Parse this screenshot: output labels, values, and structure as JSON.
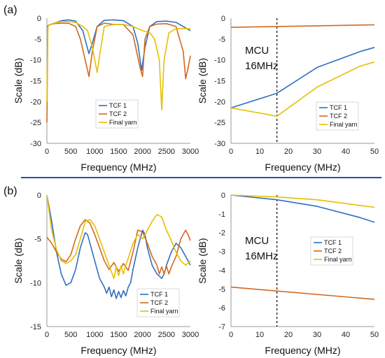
{
  "panel_labels": [
    "(a)",
    "(b)"
  ],
  "colors": {
    "tcf1": "#2f6fc4",
    "tcf2": "#d2691e",
    "final": "#e6c000",
    "divider": "#1f4fb5",
    "annotation_line": "#000000"
  },
  "chart_data": [
    {
      "id": "a_left",
      "type": "line",
      "xlabel": "Frequency (MHz)",
      "ylabel": "Scale (dB)",
      "xlim": [
        0,
        3000
      ],
      "ylim": [
        -30,
        0
      ],
      "xticks": [
        0,
        500,
        1000,
        1500,
        2000,
        2500,
        3000
      ],
      "yticks": [
        0,
        -5,
        -10,
        -15,
        -20,
        -25,
        -30
      ],
      "grid": false,
      "legend": "center",
      "series": [
        {
          "name": "TCF 1",
          "color": "#2f6fc4",
          "x": [
            0,
            50,
            150,
            300,
            450,
            600,
            750,
            820,
            880,
            950,
            1050,
            1200,
            1400,
            1600,
            1800,
            1900,
            1980,
            2050,
            2150,
            2300,
            2500,
            2700,
            2850,
            3000
          ],
          "y": [
            -2,
            -1.6,
            -1.2,
            -0.6,
            -0.4,
            -0.7,
            -3,
            -6,
            -8.5,
            -6,
            -2,
            -0.5,
            -0.4,
            -0.6,
            -2,
            -6,
            -12.5,
            -7,
            -2,
            -0.8,
            -0.7,
            -1,
            -2,
            -3
          ]
        },
        {
          "name": "TCF 2",
          "color": "#d2691e",
          "x": [
            0,
            20,
            60,
            150,
            300,
            450,
            600,
            700,
            800,
            880,
            950,
            1050,
            1200,
            1400,
            1600,
            1800,
            1950,
            2000,
            2050,
            2150,
            2300,
            2500,
            2700,
            2850,
            2900,
            2950,
            3000
          ],
          "y": [
            -25,
            -2,
            -1.5,
            -1.3,
            -1.2,
            -1.2,
            -2,
            -5,
            -10,
            -14,
            -8,
            -2,
            -1.2,
            -1.5,
            -1.5,
            -4,
            -12,
            -14,
            -5,
            -2,
            -1.4,
            -1.3,
            -2,
            -8,
            -14.5,
            -12,
            -9
          ]
        },
        {
          "name": "Final yarn",
          "color": "#e6c000",
          "x": [
            0,
            20,
            60,
            150,
            300,
            450,
            600,
            750,
            850,
            950,
            1000,
            1050,
            1100,
            1200,
            1400,
            1600,
            1800,
            2000,
            2150,
            2250,
            2350,
            2400,
            2450,
            2550,
            2700,
            2850,
            3000
          ],
          "y": [
            -20,
            -2,
            -1.5,
            -1.2,
            -0.8,
            -0.8,
            -1,
            -2,
            -3,
            -7,
            -10,
            -13,
            -9,
            -2,
            -1.5,
            -1.5,
            -2,
            -3,
            -3.5,
            -5,
            -10,
            -22,
            -10,
            -3.5,
            -2.5,
            -2.5,
            -2.5
          ]
        }
      ]
    },
    {
      "id": "a_right",
      "type": "line",
      "xlabel": "Frequency (MHz)",
      "ylabel": "Scale (dB)",
      "xlim": [
        0,
        50
      ],
      "ylim": [
        -30,
        0
      ],
      "xticks": [
        0,
        10,
        20,
        30,
        40,
        50
      ],
      "yticks": [
        0,
        -5,
        -10,
        -15,
        -20,
        -25,
        -30
      ],
      "grid": false,
      "legend": "lower-right",
      "annotation": {
        "text": [
          "MCU",
          "16MHz"
        ],
        "x": 16,
        "line": "dashed-vertical"
      },
      "series": [
        {
          "name": "TCF 1",
          "color": "#2f6fc4",
          "x": [
            0,
            16,
            30,
            45,
            50
          ],
          "y": [
            -21.5,
            -18,
            -11.8,
            -8,
            -7
          ]
        },
        {
          "name": "TCF 2",
          "color": "#d2691e",
          "x": [
            0,
            50
          ],
          "y": [
            -2.2,
            -1.6
          ]
        },
        {
          "name": "Final yarn",
          "color": "#e6c000",
          "x": [
            0,
            16,
            30,
            45,
            50
          ],
          "y": [
            -21.5,
            -23.5,
            -16.5,
            -11.5,
            -10.5
          ]
        }
      ]
    },
    {
      "id": "b_left",
      "type": "line",
      "xlabel": "Frequency (MHz)",
      "ylabel": "Scale (dB)",
      "xlim": [
        0,
        3000
      ],
      "ylim": [
        -15,
        0
      ],
      "xticks": [
        0,
        500,
        1000,
        1500,
        2000,
        2500,
        3000
      ],
      "yticks": [
        0,
        -5,
        -10,
        -15
      ],
      "grid": false,
      "legend": "lower-right",
      "series": [
        {
          "name": "TCF 1",
          "color": "#2f6fc4",
          "x": [
            0,
            100,
            200,
            300,
            400,
            500,
            600,
            700,
            800,
            850,
            900,
            1000,
            1100,
            1200,
            1250,
            1300,
            1350,
            1400,
            1450,
            1500,
            1550,
            1600,
            1650,
            1700,
            1750,
            1800,
            1900,
            2000,
            2050,
            2100,
            2200,
            2300,
            2400,
            2450,
            2500,
            2600,
            2700,
            2800,
            2900,
            3000
          ],
          "y": [
            0,
            -3,
            -6.5,
            -9,
            -10.3,
            -10,
            -8.5,
            -6,
            -4.3,
            -4.5,
            -5.5,
            -7.5,
            -9.5,
            -10.5,
            -11.2,
            -10.5,
            -11.6,
            -10.8,
            -11.8,
            -11,
            -11.7,
            -10.9,
            -11.5,
            -10.5,
            -10,
            -8.5,
            -6,
            -4,
            -4.5,
            -6,
            -8,
            -9,
            -9.5,
            -9,
            -8,
            -6.5,
            -5.5,
            -6,
            -7,
            -8
          ]
        },
        {
          "name": "TCF 2",
          "color": "#d2691e",
          "x": [
            0,
            100,
            200,
            300,
            400,
            500,
            600,
            700,
            800,
            900,
            1000,
            1100,
            1200,
            1300,
            1400,
            1500,
            1600,
            1700,
            1800,
            1900,
            2000,
            2100,
            2200,
            2300,
            2350,
            2400,
            2450,
            2500,
            2550,
            2600,
            2700,
            2800,
            2900,
            2950,
            3000
          ],
          "y": [
            -4.8,
            -5.5,
            -6.5,
            -7.3,
            -7.6,
            -6.8,
            -5,
            -3.5,
            -2.8,
            -3.2,
            -4.5,
            -6,
            -7.5,
            -8.5,
            -7.7,
            -8.7,
            -7.8,
            -8.6,
            -6.5,
            -4,
            -4.2,
            -5.5,
            -7,
            -8,
            -9,
            -8.2,
            -9,
            -8.1,
            -9,
            -8.2,
            -7,
            -5,
            -4,
            -4.5,
            -5.2
          ]
        },
        {
          "name": "Final yarn",
          "color": "#e6c000",
          "x": [
            0,
            100,
            200,
            300,
            400,
            500,
            600,
            700,
            800,
            900,
            1000,
            1100,
            1200,
            1300,
            1400,
            1450,
            1500,
            1550,
            1600,
            1650,
            1700,
            1800,
            1900,
            2000,
            2100,
            2200,
            2300,
            2400,
            2500,
            2600,
            2700,
            2800,
            2900,
            3000
          ],
          "y": [
            0,
            -4,
            -6.2,
            -7.5,
            -7.8,
            -7.5,
            -6.8,
            -5,
            -3,
            -2.8,
            -3.5,
            -5,
            -6.5,
            -8,
            -9.5,
            -8.2,
            -9.2,
            -8.1,
            -9,
            -8,
            -7.2,
            -5.5,
            -4.5,
            -5,
            -4,
            -3,
            -2.2,
            -2.5,
            -4,
            -5.2,
            -6.5,
            -7.5,
            -8,
            -7.5
          ]
        }
      ]
    },
    {
      "id": "b_right",
      "type": "line",
      "xlabel": "Frequency (MHz)",
      "ylabel": "Scale (dB)",
      "xlim": [
        0,
        50
      ],
      "ylim": [
        -7,
        0
      ],
      "xticks": [
        0,
        10,
        20,
        30,
        40,
        50
      ],
      "yticks": [
        0,
        -1,
        -2,
        -3,
        -4,
        -5,
        -6,
        -7
      ],
      "grid": false,
      "legend": "center-right",
      "annotation": {
        "text": [
          "MCU",
          "16MHz"
        ],
        "x": 16,
        "line": "dashed-vertical"
      },
      "series": [
        {
          "name": "TCF 1",
          "color": "#2f6fc4",
          "x": [
            0,
            16,
            30,
            45,
            50
          ],
          "y": [
            0,
            -0.25,
            -0.6,
            -1.2,
            -1.45
          ]
        },
        {
          "name": "TCF 2",
          "color": "#d2691e",
          "x": [
            0,
            50
          ],
          "y": [
            -4.9,
            -5.55
          ]
        },
        {
          "name": "Final yarn",
          "color": "#e6c000",
          "x": [
            0,
            16,
            30,
            45,
            50
          ],
          "y": [
            0,
            -0.1,
            -0.25,
            -0.55,
            -0.65
          ]
        }
      ]
    }
  ]
}
